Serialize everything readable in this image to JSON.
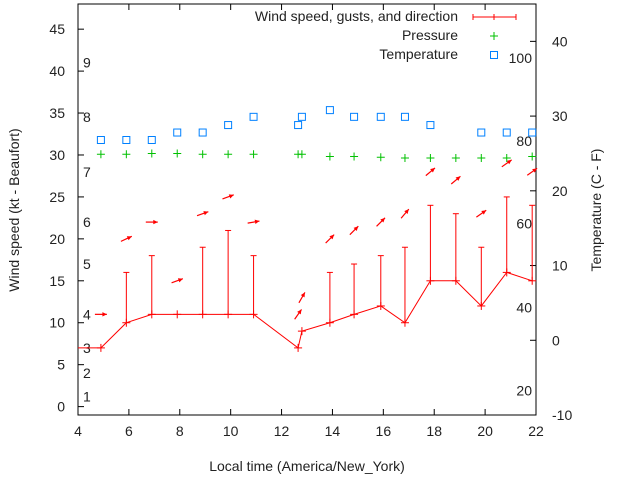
{
  "chart_data": {
    "type": "line",
    "xlabel": "Local time (America/New_York)",
    "ylabel": "Wind speed (kt - Beaufort)",
    "y2label": "Temperature (C - F)",
    "xlim": [
      4,
      22
    ],
    "ylim": [
      -1,
      48
    ],
    "y2lim": [
      -10,
      45
    ],
    "xticks": [
      4,
      6,
      8,
      10,
      12,
      14,
      16,
      18,
      20,
      22
    ],
    "yticks": [
      0,
      5,
      10,
      15,
      20,
      25,
      30,
      35,
      40,
      45
    ],
    "y2ticks": [
      -10,
      0,
      10,
      20,
      30,
      40
    ],
    "legend_position": "top-right",
    "legend": [
      "Wind speed, gusts, and direction",
      "Pressure",
      "Temperature"
    ],
    "colors": {
      "wind": "#ff0000",
      "pressure": "#00c000",
      "temperature": "#0080ff"
    },
    "beaufort_labels": [
      {
        "label": "1",
        "kt": 1.2
      },
      {
        "label": "2",
        "kt": 4
      },
      {
        "label": "3",
        "kt": 7
      },
      {
        "label": "4",
        "kt": 11
      },
      {
        "label": "5",
        "kt": 17
      },
      {
        "label": "6",
        "kt": 22
      },
      {
        "label": "7",
        "kt": 28
      },
      {
        "label": "8",
        "kt": 34.5
      },
      {
        "label": "9",
        "kt": 41
      }
    ],
    "fahrenheit_labels": [
      {
        "label": "20",
        "c": -6.7
      },
      {
        "label": "40",
        "c": 4.4
      },
      {
        "label": "60",
        "c": 15.6
      },
      {
        "label": "80",
        "c": 26.7
      },
      {
        "label": "100",
        "c": 37.8
      }
    ],
    "wind": {
      "x": [
        4.0,
        4.9,
        5.9,
        6.9,
        7.9,
        8.9,
        9.9,
        10.9,
        12.65,
        12.8,
        13.9,
        14.85,
        15.9,
        16.85,
        17.85,
        18.85,
        19.85,
        20.85,
        21.85
      ],
      "speed": [
        7,
        7,
        10,
        11,
        11,
        11,
        11,
        11,
        7,
        9,
        10,
        11,
        12,
        10,
        15,
        15,
        12,
        16,
        15
      ],
      "gust": [
        null,
        null,
        16,
        18,
        null,
        19,
        21,
        18,
        null,
        null,
        16,
        17,
        18,
        19,
        24,
        23,
        19,
        25,
        24
      ]
    },
    "wind_direction": {
      "x": [
        4.9,
        5.9,
        6.9,
        7.9,
        8.9,
        9.9,
        10.9,
        12.65,
        12.8,
        13.9,
        14.85,
        15.9,
        16.85,
        17.85,
        18.85,
        19.85,
        20.85,
        21.85
      ],
      "level": [
        11,
        20,
        22,
        15,
        23,
        25,
        22,
        11,
        13,
        20,
        21,
        22,
        23,
        28,
        27,
        23,
        29,
        28
      ],
      "angle_deg": [
        0,
        25,
        0,
        20,
        20,
        20,
        10,
        55,
        60,
        45,
        45,
        45,
        50,
        40,
        40,
        35,
        35,
        35
      ]
    },
    "pressure": {
      "x": [
        4.9,
        5.9,
        6.9,
        7.9,
        8.9,
        9.9,
        10.9,
        12.65,
        12.8,
        13.9,
        14.85,
        15.9,
        16.85,
        17.85,
        18.85,
        19.85,
        20.85,
        21.85
      ],
      "y": [
        24.9,
        24.9,
        25.0,
        25.0,
        24.9,
        24.9,
        24.9,
        24.9,
        24.9,
        24.6,
        24.6,
        24.5,
        24.4,
        24.4,
        24.4,
        24.4,
        24.4,
        24.6
      ]
    },
    "temperature": {
      "x": [
        4.9,
        5.9,
        6.9,
        7.9,
        8.9,
        9.9,
        10.9,
        12.65,
        12.8,
        13.9,
        14.85,
        15.9,
        16.85,
        17.85,
        19.85,
        20.85,
        21.85
      ],
      "y": [
        26.8,
        26.8,
        26.8,
        27.8,
        27.8,
        28.8,
        29.9,
        28.8,
        29.9,
        30.8,
        29.9,
        29.9,
        29.9,
        28.8,
        27.8,
        27.8,
        27.8
      ]
    }
  }
}
